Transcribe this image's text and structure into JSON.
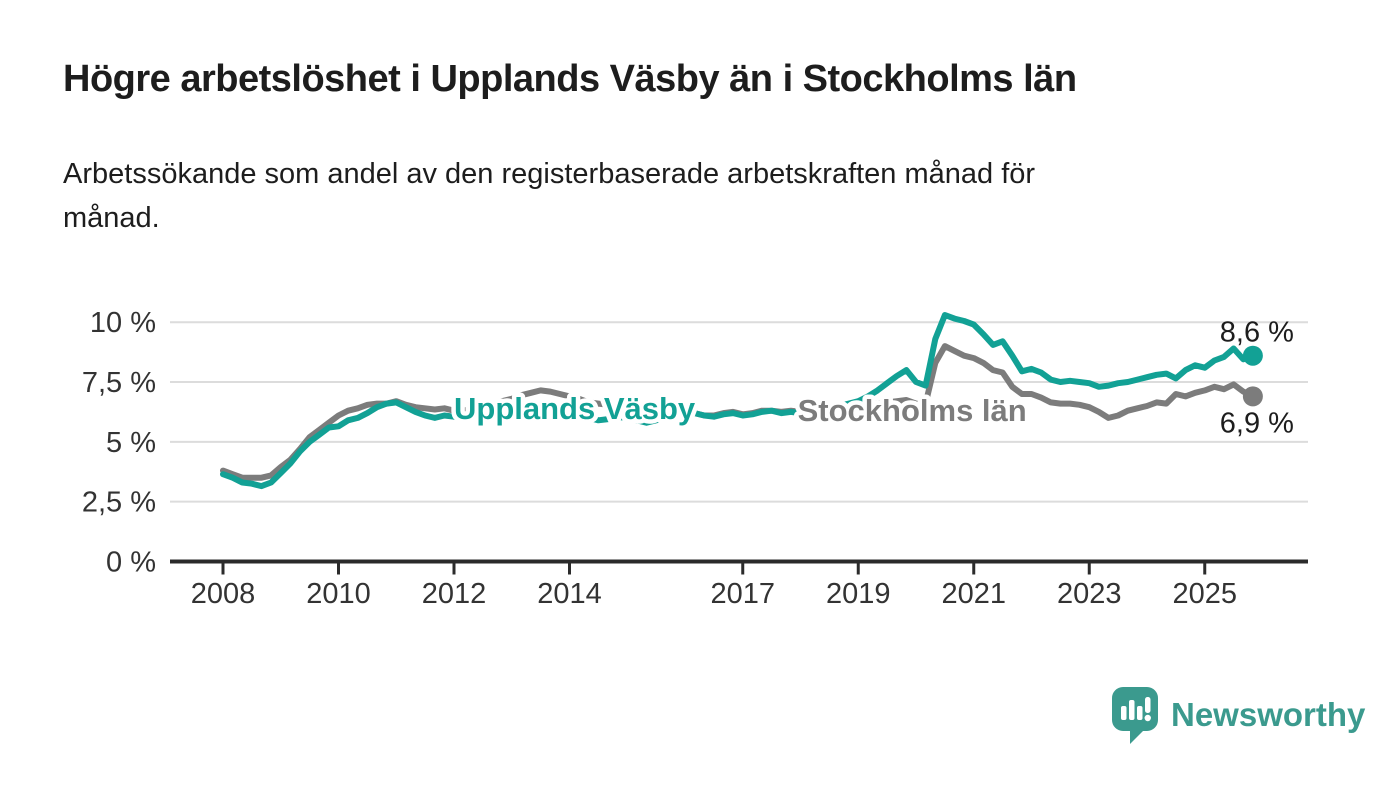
{
  "header": {
    "title": "Högre arbetslöshet i Upplands Väsby än i Stockholms län",
    "subtitle": "Arbetssökande som andel av den registerbaserade arbetskraften månad för\nmånad."
  },
  "chart_data": {
    "type": "line",
    "title": "Högre arbetslöshet i Upplands Väsby än i Stockholms län",
    "subtitle": "Arbetssökande som andel av den registerbaserade arbetskraften månad för månad.",
    "unit": "%",
    "grid": "horizontal",
    "legend_position": "inline-labels",
    "x_start": 2008.0,
    "x_step_years": 0.1666667,
    "xlim": [
      2007.9,
      2026.1
    ],
    "ylim": [
      0,
      10.5
    ],
    "y_ticks": [
      {
        "value": 0,
        "label": "0 %"
      },
      {
        "value": 2.5,
        "label": "2,5 %"
      },
      {
        "value": 5,
        "label": "5 %"
      },
      {
        "value": 7.5,
        "label": "7,5 %"
      },
      {
        "value": 10,
        "label": "10 %"
      }
    ],
    "x_ticks": [
      {
        "value": 2008,
        "label": "2008"
      },
      {
        "value": 2010,
        "label": "2010"
      },
      {
        "value": 2012,
        "label": "2012"
      },
      {
        "value": 2014,
        "label": "2014"
      },
      {
        "value": 2017,
        "label": "2017"
      },
      {
        "value": 2019,
        "label": "2019"
      },
      {
        "value": 2021,
        "label": "2021"
      },
      {
        "value": 2023,
        "label": "2023"
      },
      {
        "value": 2025,
        "label": "2025"
      }
    ],
    "series": [
      {
        "name": "Upplands Väsby",
        "color": "#12a195",
        "end_label": "8,6 %",
        "end_label_position": "above",
        "label_pos": {
          "x": 2012.0,
          "y": 5.95
        },
        "values": [
          3.65,
          3.5,
          3.3,
          3.25,
          3.15,
          3.3,
          3.7,
          4.1,
          4.6,
          5.0,
          5.3,
          5.6,
          5.65,
          5.9,
          6.0,
          6.2,
          6.45,
          6.6,
          6.65,
          6.45,
          6.25,
          6.1,
          6.0,
          6.1,
          6.05,
          5.95,
          6.1,
          6.2,
          6.3,
          6.35,
          6.4,
          6.45,
          6.5,
          6.5,
          6.45,
          6.4,
          6.4,
          6.25,
          6.0,
          5.9,
          5.95,
          6.0,
          6.05,
          5.9,
          5.8,
          5.9,
          6.0,
          6.1,
          6.15,
          6.2,
          6.1,
          6.05,
          6.15,
          6.2,
          6.1,
          6.15,
          6.25,
          6.3,
          6.2,
          6.25,
          6.2,
          6.3,
          6.35,
          6.4,
          6.5,
          6.6,
          6.7,
          6.9,
          7.15,
          7.45,
          7.75,
          8.0,
          7.5,
          7.35,
          9.3,
          10.3,
          10.15,
          10.05,
          9.9,
          9.5,
          9.05,
          9.2,
          8.6,
          7.95,
          8.05,
          7.9,
          7.6,
          7.5,
          7.55,
          7.5,
          7.45,
          7.3,
          7.35,
          7.45,
          7.5,
          7.6,
          7.7,
          7.8,
          7.85,
          7.65,
          8.0,
          8.2,
          8.1,
          8.4,
          8.55,
          8.9,
          8.45,
          8.6
        ]
      },
      {
        "name": "Stockholms län",
        "color": "#7c7c7c",
        "end_label": "6,9 %",
        "end_label_position": "below",
        "label_pos": {
          "x": 2017.95,
          "y": 5.87
        },
        "values": [
          3.8,
          3.65,
          3.5,
          3.5,
          3.5,
          3.6,
          3.95,
          4.25,
          4.7,
          5.2,
          5.5,
          5.8,
          6.1,
          6.3,
          6.4,
          6.55,
          6.6,
          6.6,
          6.7,
          6.55,
          6.45,
          6.4,
          6.35,
          6.4,
          6.3,
          6.3,
          6.4,
          6.5,
          6.6,
          6.7,
          6.8,
          6.95,
          7.05,
          7.15,
          7.1,
          7.0,
          6.9,
          6.8,
          6.65,
          6.6,
          6.55,
          6.5,
          6.45,
          6.35,
          6.25,
          6.25,
          6.3,
          6.3,
          6.3,
          6.2,
          6.1,
          6.1,
          6.2,
          6.25,
          6.15,
          6.2,
          6.3,
          6.3,
          6.25,
          6.3,
          6.25,
          6.3,
          6.3,
          6.35,
          6.4,
          6.45,
          6.5,
          6.55,
          6.6,
          6.65,
          6.7,
          6.75,
          6.6,
          6.6,
          8.3,
          9.0,
          8.8,
          8.6,
          8.5,
          8.3,
          8.0,
          7.9,
          7.3,
          7.0,
          7.0,
          6.85,
          6.65,
          6.6,
          6.6,
          6.55,
          6.45,
          6.25,
          6.0,
          6.1,
          6.3,
          6.4,
          6.5,
          6.65,
          6.6,
          7.0,
          6.9,
          7.05,
          7.15,
          7.3,
          7.2,
          7.4,
          7.1,
          6.9
        ]
      }
    ],
    "colors": {
      "gridline": "#dcdcdc",
      "axis": "#2b2b2b",
      "text": "#333333"
    }
  },
  "branding": {
    "name": "Newsworthy",
    "color": "#3b9a8e"
  }
}
